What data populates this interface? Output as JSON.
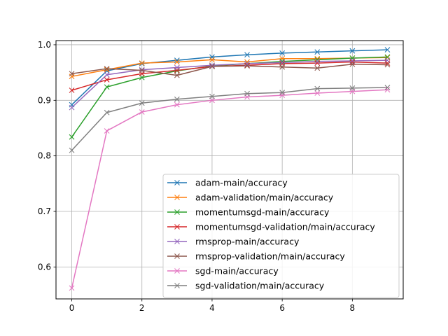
{
  "chart_data": {
    "type": "line",
    "title": "",
    "xlabel": "",
    "ylabel": "",
    "x": [
      0,
      1,
      2,
      3,
      4,
      5,
      6,
      7,
      8,
      9
    ],
    "xlim": [
      -0.45,
      9.45
    ],
    "ylim": [
      0.5425,
      1.0075
    ],
    "xticks": [
      0,
      2,
      4,
      6,
      8
    ],
    "yticks": [
      0.6,
      0.7,
      0.8,
      0.9,
      1.0
    ],
    "xtick_labels": [
      "0",
      "2",
      "4",
      "6",
      "8"
    ],
    "ytick_labels": [
      "0.6",
      "0.7",
      "0.8",
      "0.9",
      "1.0"
    ],
    "grid": true,
    "legend_position": "lower-right",
    "marker": "x",
    "series": [
      {
        "name": "adam-main/accuracy",
        "color": "#1f77b4",
        "values": [
          0.892,
          0.953,
          0.966,
          0.972,
          0.978,
          0.982,
          0.985,
          0.987,
          0.989,
          0.991
        ]
      },
      {
        "name": "adam-validation/main/accuracy",
        "color": "#ff7f0e",
        "values": [
          0.943,
          0.955,
          0.967,
          0.969,
          0.973,
          0.969,
          0.975,
          0.975,
          0.976,
          0.977
        ]
      },
      {
        "name": "momentumsgd-main/accuracy",
        "color": "#2ca02c",
        "values": [
          0.834,
          0.924,
          0.941,
          0.953,
          0.962,
          0.966,
          0.97,
          0.973,
          0.976,
          0.978
        ]
      },
      {
        "name": "momentumsgd-validation/main/accuracy",
        "color": "#d62728",
        "values": [
          0.918,
          0.937,
          0.948,
          0.954,
          0.961,
          0.963,
          0.966,
          0.967,
          0.969,
          0.967
        ]
      },
      {
        "name": "rmsprop-main/accuracy",
        "color": "#9467bd",
        "values": [
          0.887,
          0.946,
          0.955,
          0.959,
          0.963,
          0.966,
          0.968,
          0.97,
          0.971,
          0.972
        ]
      },
      {
        "name": "rmsprop-validation/main/accuracy",
        "color": "#8c564b",
        "values": [
          0.948,
          0.957,
          0.954,
          0.945,
          0.961,
          0.962,
          0.96,
          0.958,
          0.965,
          0.964
        ]
      },
      {
        "name": "sgd-main/accuracy",
        "color": "#e377c2",
        "values": [
          0.562,
          0.845,
          0.879,
          0.892,
          0.9,
          0.906,
          0.909,
          0.913,
          0.916,
          0.919
        ]
      },
      {
        "name": "sgd-validation/main/accuracy",
        "color": "#7f7f7f",
        "values": [
          0.81,
          0.878,
          0.895,
          0.902,
          0.907,
          0.912,
          0.914,
          0.921,
          0.922,
          0.923
        ]
      }
    ]
  }
}
